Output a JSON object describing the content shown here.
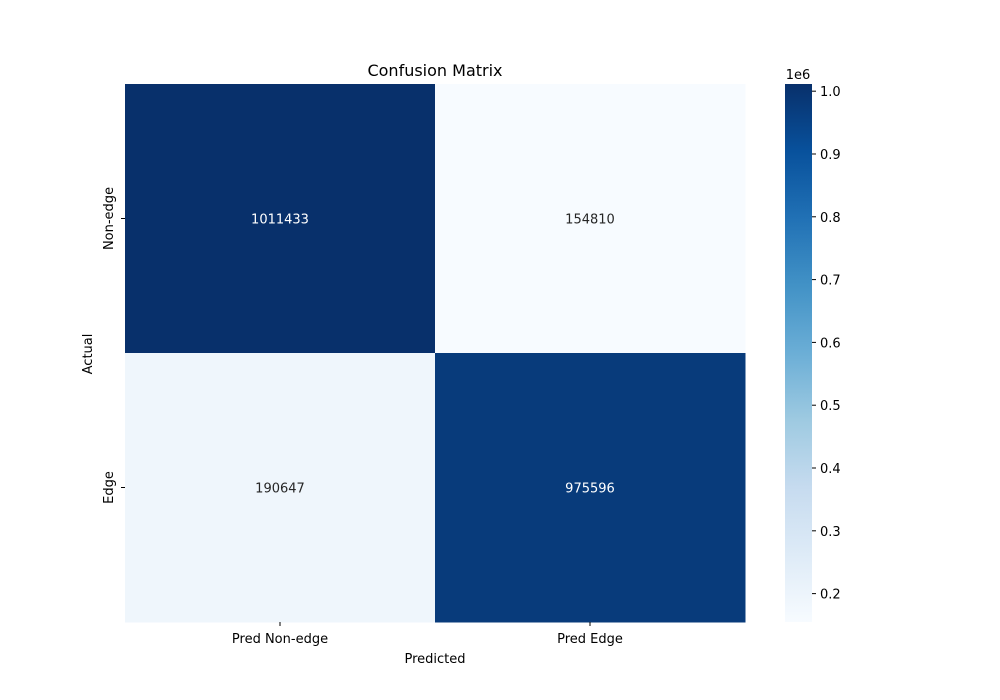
{
  "chart_data": {
    "type": "heatmap",
    "title": "Confusion Matrix",
    "xlabel": "Predicted",
    "ylabel": "Actual",
    "x_categories": [
      "Pred Non-edge",
      "Pred Edge"
    ],
    "y_categories": [
      "Non-edge",
      "Edge"
    ],
    "values": [
      [
        1011433,
        154810
      ],
      [
        190647,
        975596
      ]
    ],
    "colormap": "Blues",
    "colorbar": {
      "range": [
        154810,
        1011433
      ],
      "ticks": [
        0.2,
        0.3,
        0.4,
        0.5,
        0.6,
        0.7,
        0.8,
        0.9,
        1.0
      ],
      "tick_labels": [
        "0.2",
        "0.3",
        "0.4",
        "0.5",
        "0.6",
        "0.7",
        "0.8",
        "0.9",
        "1.0"
      ],
      "exponent_label": "1e6"
    },
    "annotation_colors": {
      "light_text": "#ffffff",
      "dark_text": "#262626"
    }
  }
}
